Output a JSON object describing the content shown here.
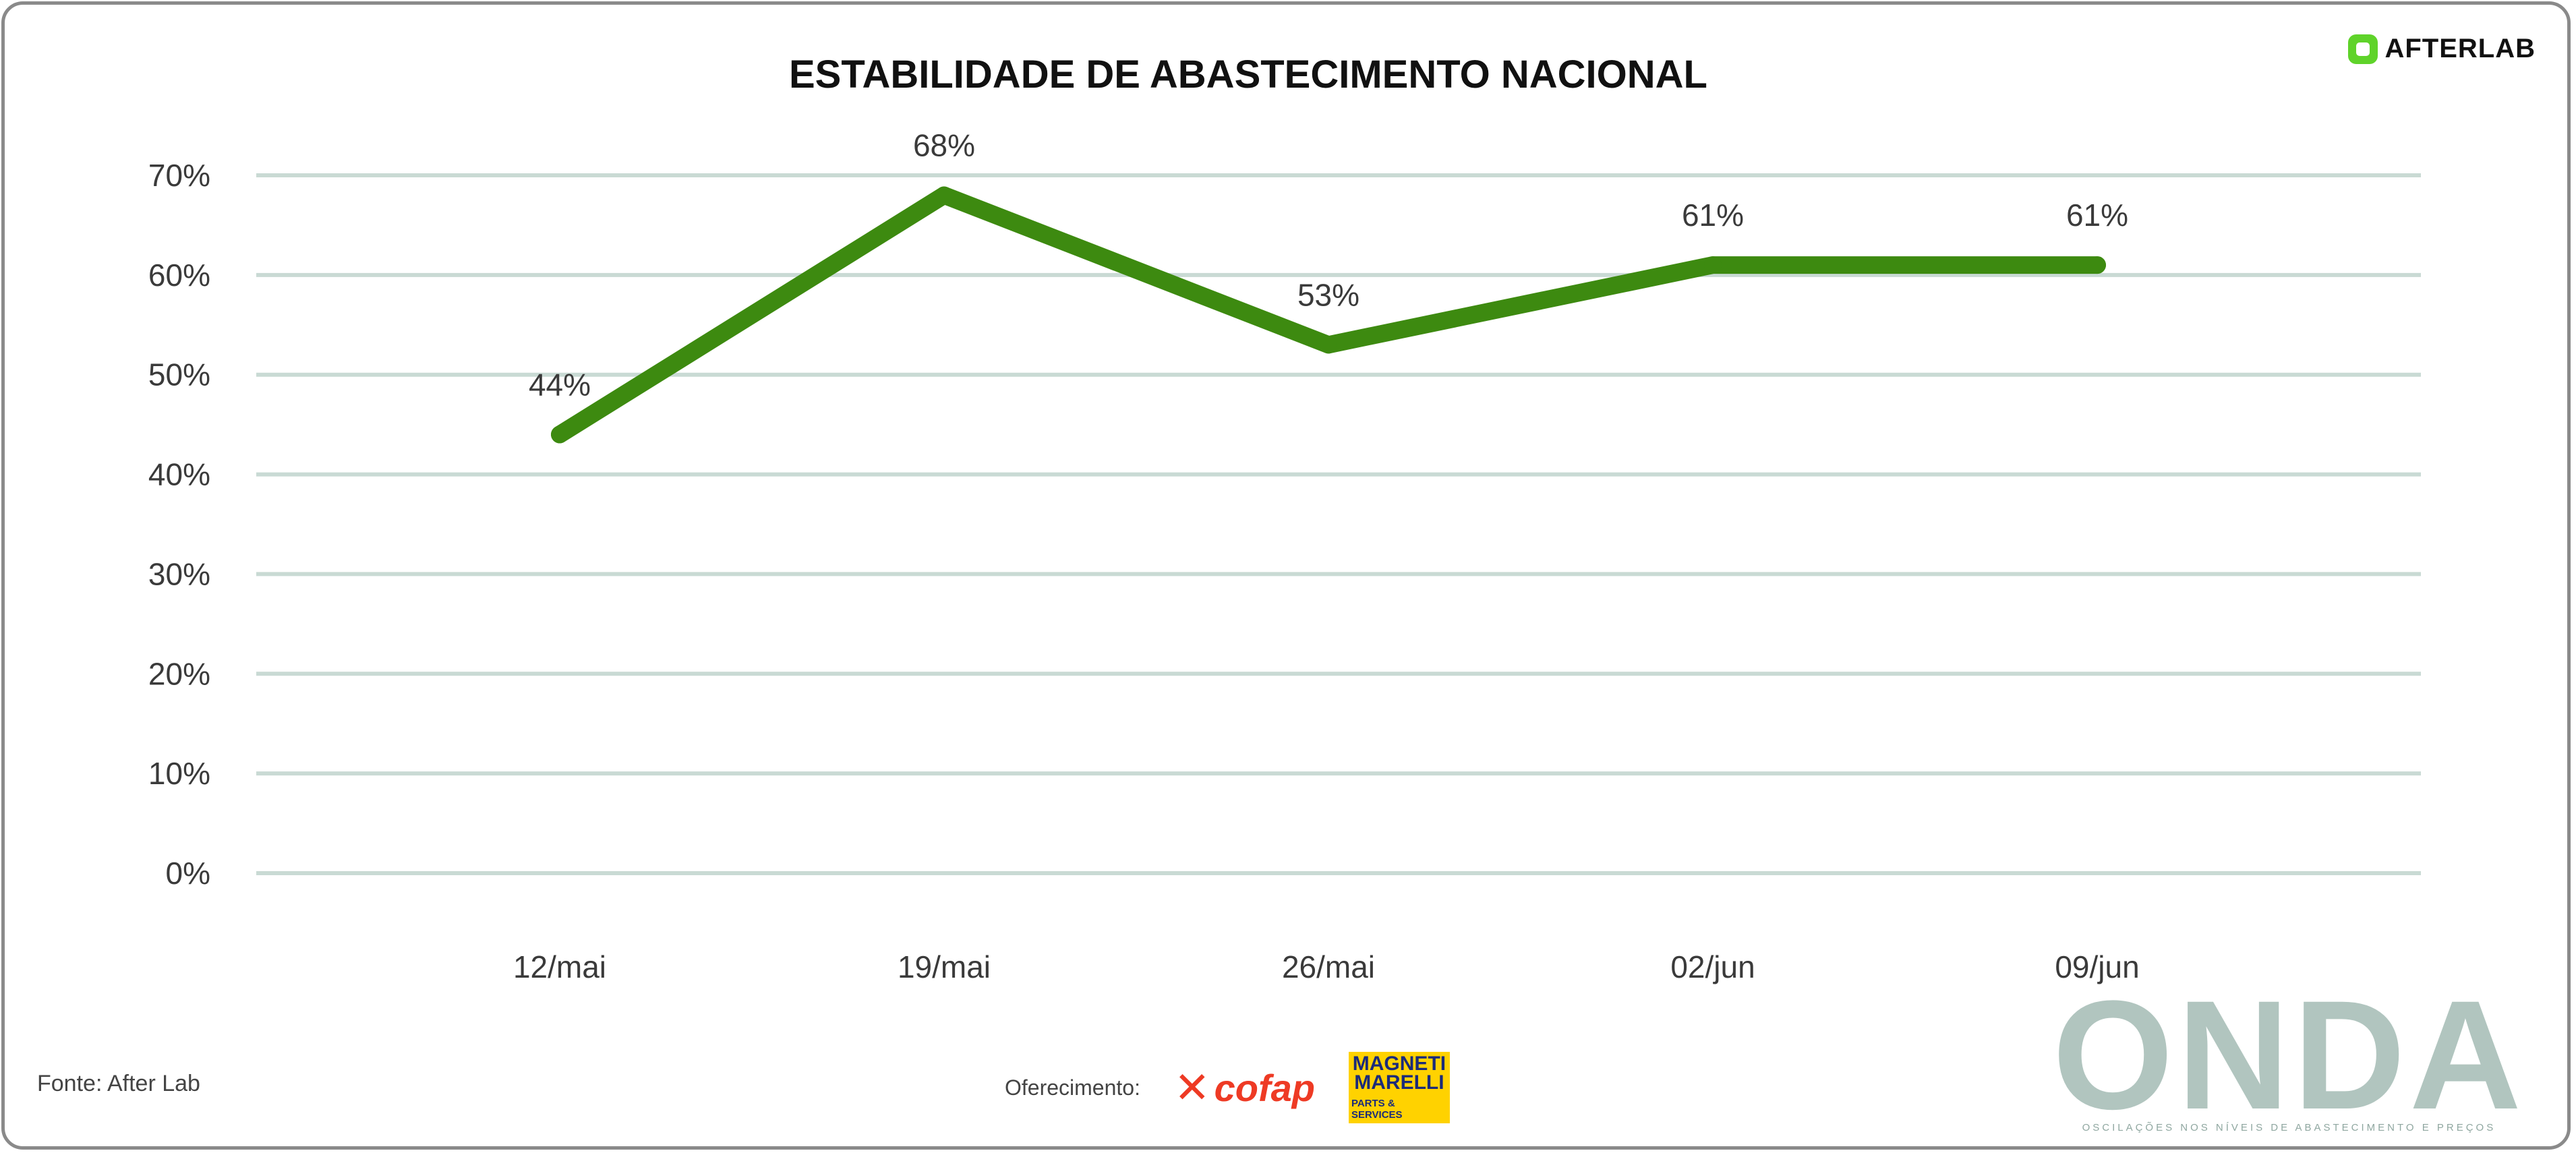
{
  "header": {
    "title": "ESTABILIDADE DE ABASTECIMENTO NACIONAL",
    "brand_logo_text": "AFTERLAB",
    "brand_logo_icon": "afterlab-logo-icon",
    "brand_color": "#5fd32a"
  },
  "chart_data": {
    "type": "line",
    "title": "ESTABILIDADE DE ABASTECIMENTO NACIONAL",
    "xlabel": "",
    "ylabel": "",
    "categories": [
      "12/mai",
      "19/mai",
      "26/mai",
      "02/jun",
      "09/jun"
    ],
    "series": [
      {
        "values": [
          44,
          68,
          53,
          61,
          61
        ],
        "labels": [
          "44%",
          "68%",
          "53%",
          "61%",
          "61%"
        ],
        "color": "#3d8a10"
      }
    ],
    "yticks": [
      0,
      10,
      20,
      30,
      40,
      50,
      60,
      70
    ],
    "ytick_labels": [
      "0%",
      "10%",
      "20%",
      "30%",
      "40%",
      "50%",
      "60%",
      "70%"
    ],
    "ylim": [
      0,
      70
    ],
    "grid": true,
    "legend": "none"
  },
  "footer": {
    "source": "Fonte: After Lab",
    "sponsor_label": "Oferecimento:",
    "sponsors": {
      "cofap": "cofap",
      "marelli_top": "MAGNETI MARELLI",
      "marelli_bottom": "PARTS & SERVICES"
    },
    "onda_title": "ONDA",
    "onda_subtitle": "OSCILAÇÕES NOS NÍVEIS DE ABASTECIMENTO E PREÇOS"
  }
}
